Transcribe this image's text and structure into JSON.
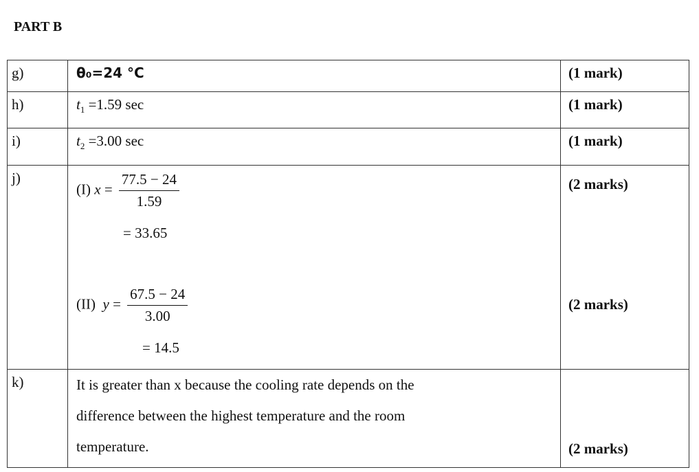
{
  "heading": "PART B",
  "rows": [
    {
      "label": "g)",
      "answer": "θ₀=24 °C",
      "marks": "(1 mark)"
    },
    {
      "label": "h)",
      "var": "t",
      "sub": "1",
      "value": "=1.59 sec",
      "marks": "(1 mark)"
    },
    {
      "label": "i)",
      "var": "t",
      "sub": "2",
      "value": "=3.00 sec",
      "marks": "(1 mark)"
    },
    {
      "label": "j)",
      "part1": {
        "prefix": "(I)",
        "var": "x",
        "eq": "=",
        "numerator": "77.5 − 24",
        "denominator": "1.59",
        "result": "= 33.65",
        "marks": "(2 marks)"
      },
      "part2": {
        "prefix": "(II)",
        "var": "y",
        "eq": "=",
        "numerator": "67.5 − 24",
        "denominator": "3.00",
        "result": "= 14.5",
        "marks": "(2 marks)"
      }
    },
    {
      "label": "k)",
      "lines": [
        "It is greater than x because the cooling rate depends on the",
        "difference between the highest temperature and the room",
        "temperature."
      ],
      "marks": "(2 marks)"
    }
  ]
}
